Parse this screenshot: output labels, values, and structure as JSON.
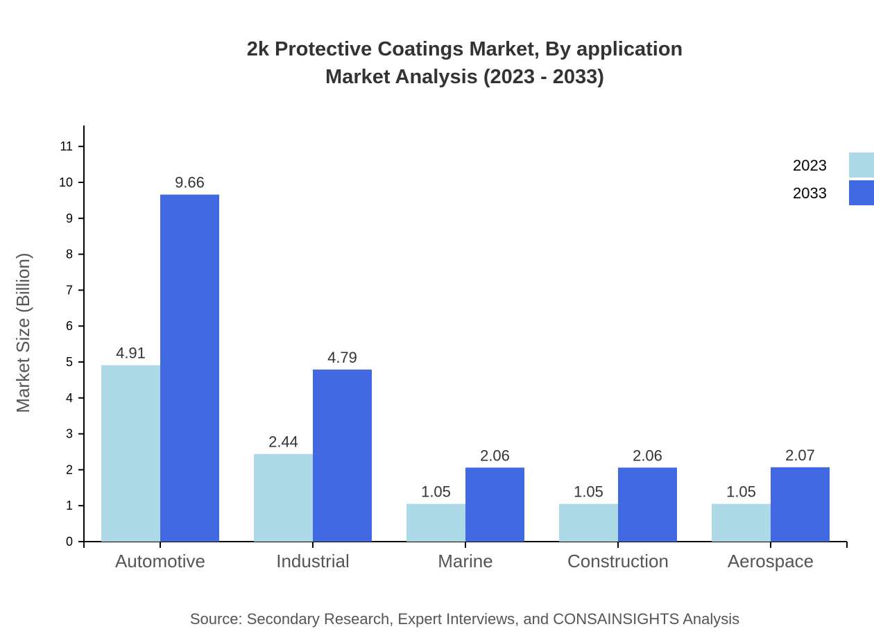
{
  "chart_data": {
    "type": "bar",
    "title": "2k Protective Coatings Market, By application",
    "subtitle": "Market Analysis (2023 - 2033)",
    "xlabel": "",
    "ylabel": "Market Size (Billion)",
    "ylim": [
      0,
      11.6
    ],
    "yticks": [
      0,
      1,
      2,
      3,
      4,
      5,
      6,
      7,
      8,
      9,
      10,
      11
    ],
    "categories": [
      "Automotive",
      "Industrial",
      "Marine",
      "Construction",
      "Aerospace"
    ],
    "series": [
      {
        "name": "2023",
        "color": "#add8e6",
        "values": [
          4.91,
          2.44,
          1.05,
          1.05,
          1.05
        ]
      },
      {
        "name": "2033",
        "color": "#4169e1",
        "values": [
          9.66,
          4.79,
          2.06,
          2.06,
          2.07
        ]
      }
    ],
    "legend_position": "top-right",
    "grid": false
  },
  "source": "Source: Secondary Research, Expert Interviews, and CONSAINSIGHTS Analysis"
}
